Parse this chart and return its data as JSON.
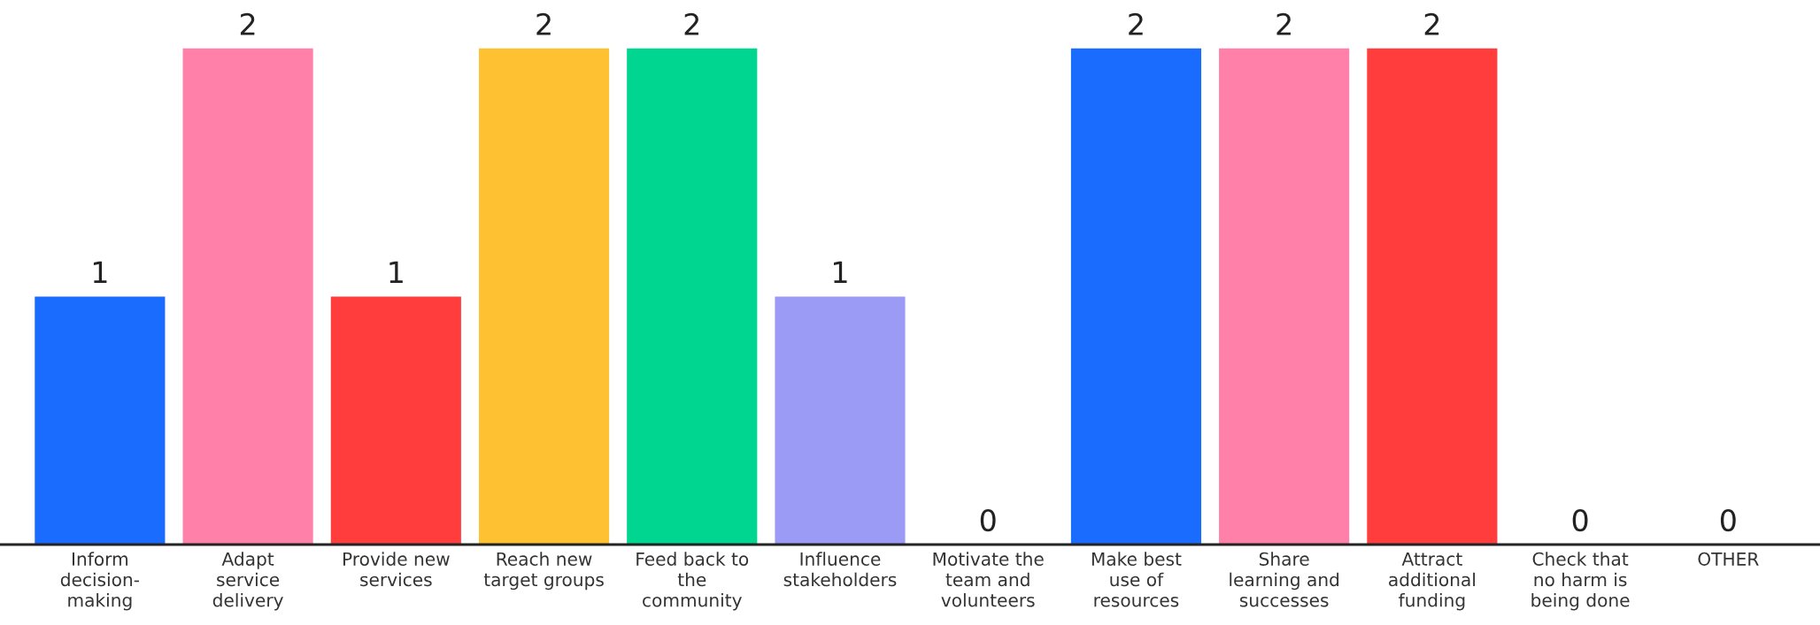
{
  "chart_data": {
    "type": "bar",
    "categories": [
      "Inform\ndecision-\nmaking",
      "Adapt\nservice\ndelivery",
      "Provide new\nservices",
      "Reach new\ntarget groups",
      "Feed back to\nthe\ncommunity",
      "Influence\nstakeholders",
      "Motivate the\nteam and\nvolunteers",
      "Make best\nuse of\nresources",
      "Share\nlearning and\nsuccesses",
      "Attract\nadditional\nfunding",
      "Check that\nno harm is\nbeing done",
      "OTHER"
    ],
    "values": [
      1,
      2,
      1,
      2,
      2,
      1,
      0,
      2,
      2,
      2,
      0,
      0
    ],
    "colors": [
      "#1a6cff",
      "#ff80a8",
      "#ff3d3d",
      "#fdc132",
      "#00d68f",
      "#9b9bf5",
      "#1a6cff",
      "#1a6cff",
      "#ff80a8",
      "#ff3d3d",
      "#ff80a8",
      "#9b9bf5"
    ],
    "data_labels": true,
    "tick_labels": "x",
    "grid": false,
    "legend": false
  }
}
